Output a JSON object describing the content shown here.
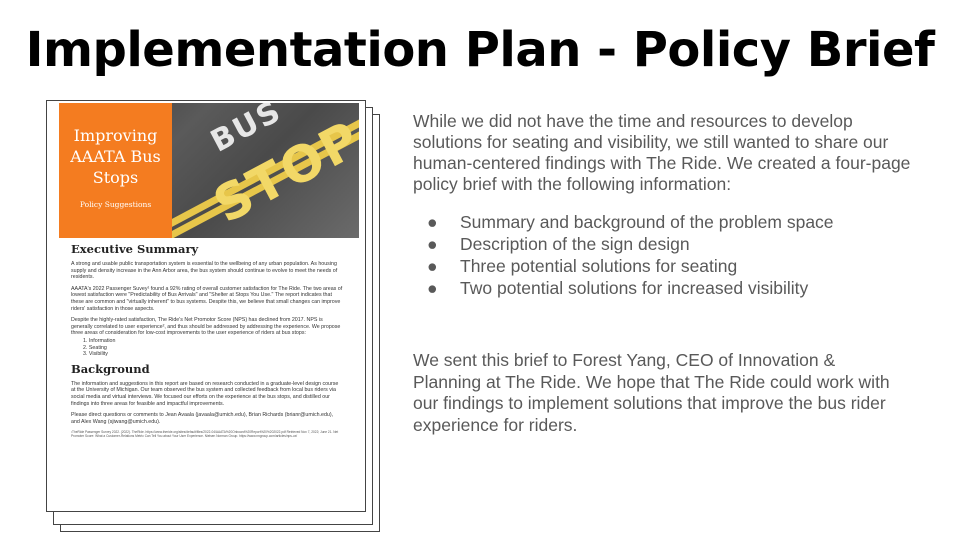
{
  "slide": {
    "title": "Implementation Plan - Policy Brief"
  },
  "document": {
    "cover_title": "Improving AAATA Bus Stops",
    "cover_subtitle": "Policy Suggestions",
    "road_text_top": "BUS",
    "road_text_bottom": "STOP",
    "exec_summary_heading": "Executive Summary",
    "exec_p1": "A strong and usable public transportation system is essential to the wellbeing of any urban population. As housing supply and density increase in the Ann Arbor area, the bus system should continue to evolve to meet the needs of residents.",
    "exec_p2": "AAATA's 2022 Passenger Suvey¹ found a 92% rating of overall customer satisfaction for The Ride. The two areas of lowest satisfaction were \"Predictability of Bus Arrivals\" and \"Shelter at Stops You Use.\" The report indicates that these are common and \"virtually inherent\" to bus systems. Despite this, we believe that small changes can improve riders' satisfaction in those aspects.",
    "exec_p3": "Despite the highly-rated satisfaction, The Ride's Net Promotor Score (NPS) has declined from 2017. NPS is generally correlated to user experience², and thus should be addressed by addressing the experience. We propose three areas of consideration for low-cost improvements to the user experience of riders at bus stops:",
    "exec_list": [
      "1. Information",
      "2. Seating",
      "3. Visibility"
    ],
    "background_heading": "Background",
    "bg_p1": "The information and suggestions in this report are based on research conducted in a graduate-level design course at the University of Michigan. Our team observed the bus system and collected feedback from local bus riders via social media and virtual interviews. We focused our efforts on the experience at the bus stops, and distilled our findings into three areas for feasible and impactful improvements.",
    "bg_p2": "Please direct questions or comments to Jean Avaala (javaala@umich.edu), Brian Richards (brianr@umich.edu), and Alex Wang (sjiwang@umich.edu).",
    "footnote": "¹TheRide Passenger Survey 2022. (2022). TheRide. https://www.theride.org/sites/default/files/2022-04/AAATA%20Onboard%20Report%20%202022.pdf Retrieved Nov 7, 2022; June 21. Net Promoter Score: What a Customer-Relations Metric Can Tell You about Your User Experience. Nielsen Norman Group. https://www.nngroup.com/articles/nps-ux/"
  },
  "content": {
    "intro": "While we did not have the time and resources to develop solutions for seating and visibility, we still wanted to share our human-centered findings with The Ride. We created a four-page policy brief with the following information:",
    "bullet_glyph": "●",
    "bullets": [
      "Summary and background of the problem space",
      "Description of the sign design",
      "Three potential solutions for seating",
      "Two potential solutions for increased visibility"
    ],
    "closing": "We sent this brief to Forest Yang, CEO of Innovation & Planning at The Ride. We hope that The Ride could work with our findings to implement solutions that improve the bus rider experience for riders."
  },
  "colors": {
    "accent_orange": "#f47c20",
    "body_text_gray": "#595959",
    "road_yellow": "#e7c64a"
  }
}
